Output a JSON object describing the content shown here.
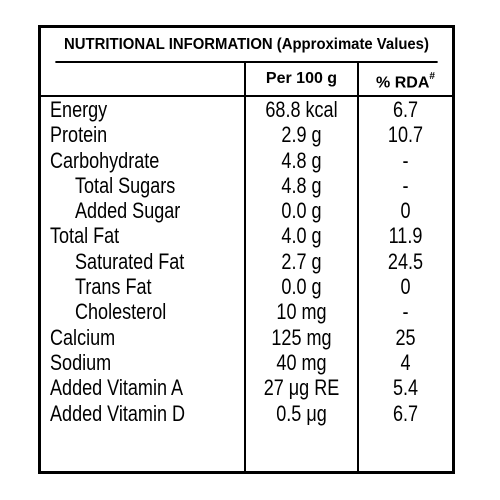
{
  "panel": {
    "title": "NUTRITIONAL INFORMATION (Approximate Values)",
    "columns": {
      "per_100g": "Per 100 g",
      "rda": "% RDA",
      "rda_mark": "#"
    },
    "rows": [
      {
        "name": "Energy",
        "indent": false,
        "value": "68.8 kcal",
        "rda": "6.7"
      },
      {
        "name": "Protein",
        "indent": false,
        "value": "2.9 g",
        "rda": "10.7"
      },
      {
        "name": "Carbohydrate",
        "indent": false,
        "value": "4.8 g",
        "rda": "-"
      },
      {
        "name": "Total Sugars",
        "indent": true,
        "value": "4.8 g",
        "rda": "-"
      },
      {
        "name": "Added Sugar",
        "indent": true,
        "value": "0.0 g",
        "rda": "0"
      },
      {
        "name": "Total Fat",
        "indent": false,
        "value": "4.0 g",
        "rda": "11.9"
      },
      {
        "name": "Saturated Fat",
        "indent": true,
        "value": "2.7 g",
        "rda": "24.5"
      },
      {
        "name": "Trans Fat",
        "indent": true,
        "value": "0.0 g",
        "rda": "0"
      },
      {
        "name": "Cholesterol",
        "indent": true,
        "value": "10 mg",
        "rda": "-"
      },
      {
        "name": "Calcium",
        "indent": false,
        "value": "125 mg",
        "rda": "25"
      },
      {
        "name": "Sodium",
        "indent": false,
        "value": "40 mg",
        "rda": "4"
      },
      {
        "name": "Added Vitamin A",
        "indent": false,
        "value": "27 μg RE",
        "rda": "5.4"
      },
      {
        "name": "Added Vitamin D",
        "indent": false,
        "value": "0.5 μg",
        "rda": "6.7"
      }
    ]
  }
}
